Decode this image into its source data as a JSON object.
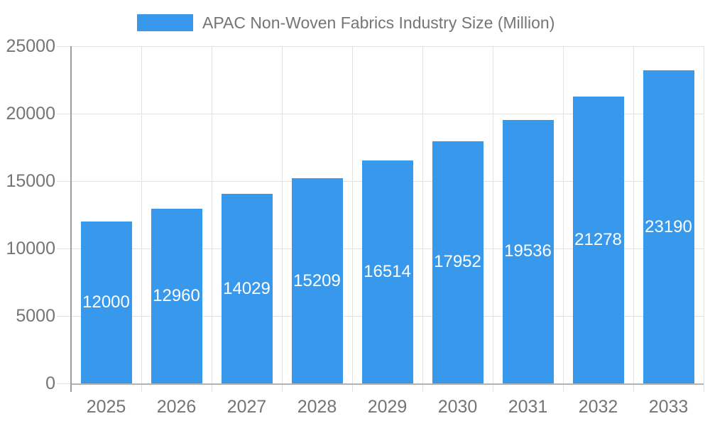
{
  "chart_data": {
    "type": "bar",
    "title": "APAC Non-Woven Fabrics Industry Size (Million)",
    "legend_position": "top",
    "categories": [
      "2025",
      "2026",
      "2027",
      "2028",
      "2029",
      "2030",
      "2031",
      "2032",
      "2033"
    ],
    "values": [
      12000,
      12960,
      14029,
      15209,
      16514,
      17952,
      19536,
      21278,
      23190
    ],
    "xlabel": "",
    "ylabel": "",
    "ylim": [
      0,
      25000
    ],
    "yticks": [
      0,
      5000,
      10000,
      15000,
      20000,
      25000
    ],
    "grid": true,
    "colors": {
      "bar": "#3899EC",
      "value_label": "#ffffff",
      "axis_text": "#757575",
      "gridline": "#e2e2e2",
      "baseline": "#b3b3b3",
      "axis_line": "#9e9e9e",
      "background": "#ffffff"
    }
  }
}
